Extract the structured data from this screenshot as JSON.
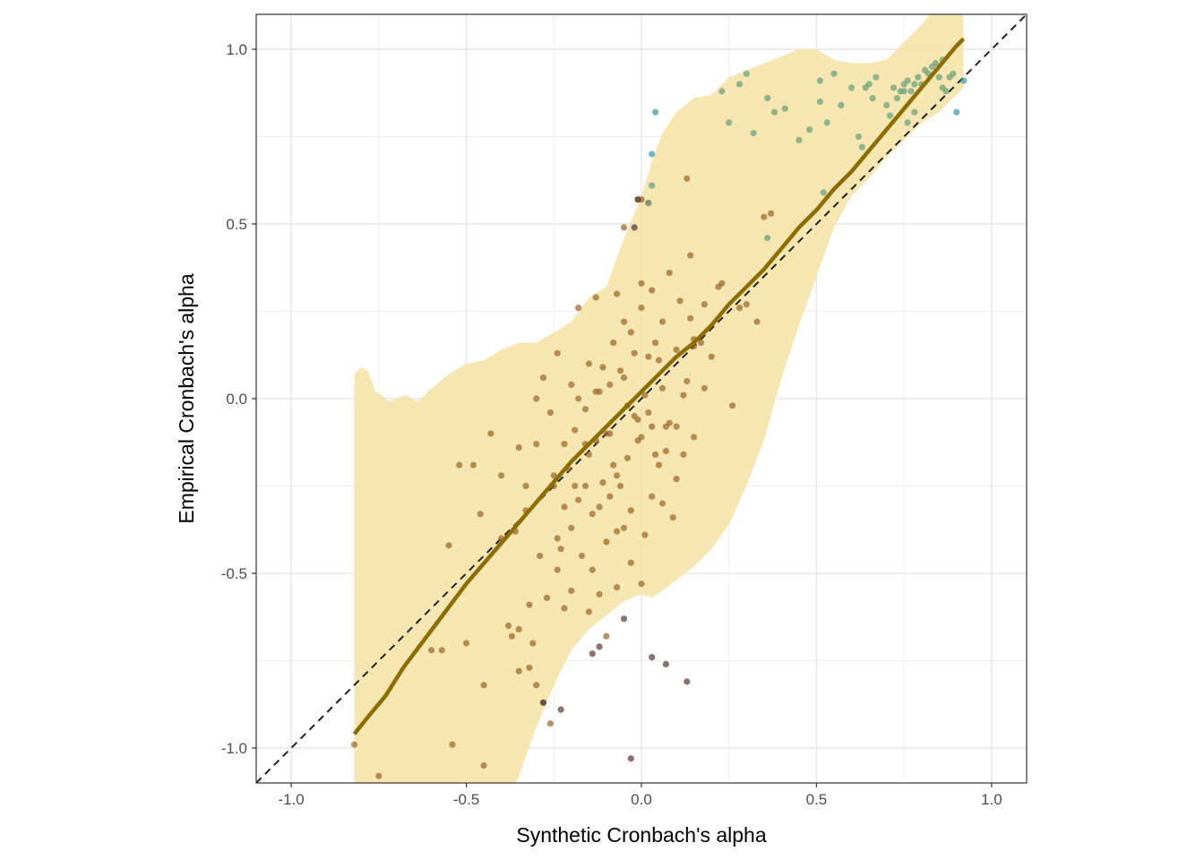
{
  "chart_data": {
    "type": "scatter",
    "xlabel": "Synthetic Cronbach's alpha",
    "ylabel": "Empirical Cronbach's alpha",
    "xlim": [
      -1.1,
      1.1
    ],
    "ylim": [
      -1.1,
      1.1
    ],
    "x_ticks": [
      "-1.0",
      "-0.5",
      "0.0",
      "0.5",
      "1.0"
    ],
    "y_ticks": [
      "-1.0",
      "-0.5",
      "0.0",
      "0.5",
      "1.0"
    ],
    "grid": true,
    "reference_line": {
      "type": "identity",
      "style": "dashed",
      "color": "#222222"
    },
    "colors": {
      "ribbon": "#f5e3a8",
      "fit_line": "#8c6d00",
      "points_within": "#9a6a2e",
      "points_above": "#3a9aa4",
      "points_below": "#5a3a3a",
      "grid": "#e6e6e6",
      "panel_border": "#333333"
    },
    "ribbon": {
      "x": [
        -0.82,
        -0.8,
        -0.78,
        -0.76,
        -0.74,
        -0.72,
        -0.7,
        -0.67,
        -0.64,
        -0.6,
        -0.55,
        -0.5,
        -0.45,
        -0.4,
        -0.35,
        -0.3,
        -0.25,
        -0.2,
        -0.15,
        -0.1,
        -0.05,
        0.0,
        0.03,
        0.06,
        0.1,
        0.15,
        0.2,
        0.25,
        0.3,
        0.35,
        0.4,
        0.45,
        0.5,
        0.55,
        0.6,
        0.65,
        0.7,
        0.75,
        0.8,
        0.85,
        0.88,
        0.9,
        0.92
      ],
      "upper": [
        0.07,
        0.09,
        0.08,
        0.02,
        0.01,
        -0.01,
        0.0,
        0.01,
        -0.01,
        0.03,
        0.07,
        0.1,
        0.11,
        0.14,
        0.16,
        0.16,
        0.19,
        0.22,
        0.29,
        0.32,
        0.46,
        0.58,
        0.68,
        0.76,
        0.82,
        0.86,
        0.87,
        0.92,
        0.94,
        0.96,
        0.98,
        1.0,
        1.0,
        0.97,
        0.96,
        0.96,
        0.97,
        1.02,
        1.07,
        1.13,
        1.15,
        1.2,
        1.22
      ],
      "lower": [
        -1.2,
        -1.2,
        -1.2,
        -1.2,
        -1.2,
        -1.2,
        -1.2,
        -1.2,
        -1.2,
        -1.2,
        -1.2,
        -1.2,
        -1.2,
        -1.2,
        -1.08,
        -0.94,
        -0.82,
        -0.72,
        -0.66,
        -0.62,
        -0.58,
        -0.56,
        -0.57,
        -0.55,
        -0.52,
        -0.48,
        -0.43,
        -0.36,
        -0.25,
        -0.12,
        0.06,
        0.21,
        0.35,
        0.49,
        0.58,
        0.63,
        0.69,
        0.74,
        0.79,
        0.82,
        0.85,
        0.87,
        0.89
      ]
    },
    "fit_line": {
      "x": [
        -0.82,
        -0.78,
        -0.73,
        -0.68,
        -0.62,
        -0.56,
        -0.5,
        -0.44,
        -0.38,
        -0.32,
        -0.26,
        -0.2,
        -0.14,
        -0.08,
        -0.03,
        0.0,
        0.05,
        0.1,
        0.15,
        0.2,
        0.25,
        0.3,
        0.35,
        0.4,
        0.45,
        0.5,
        0.55,
        0.6,
        0.65,
        0.7,
        0.75,
        0.8,
        0.85,
        0.9,
        0.92
      ],
      "y": [
        -0.96,
        -0.91,
        -0.85,
        -0.77,
        -0.69,
        -0.61,
        -0.53,
        -0.46,
        -0.39,
        -0.32,
        -0.25,
        -0.18,
        -0.12,
        -0.06,
        -0.01,
        0.02,
        0.07,
        0.12,
        0.16,
        0.21,
        0.27,
        0.32,
        0.37,
        0.43,
        0.49,
        0.54,
        0.6,
        0.65,
        0.71,
        0.77,
        0.83,
        0.89,
        0.95,
        1.01,
        1.03
      ]
    },
    "series": [
      {
        "name": "",
        "color": "#9a6a2e",
        "points": [
          [
            -0.02,
            -0.05
          ],
          [
            0.01,
            0.01
          ],
          [
            0.03,
            -0.08
          ],
          [
            -0.05,
            0.06
          ],
          [
            0.06,
            0.03
          ],
          [
            -0.1,
            -0.1
          ],
          [
            -0.12,
            0.02
          ],
          [
            -0.15,
            -0.16
          ],
          [
            0.05,
            -0.19
          ],
          [
            -0.07,
            -0.22
          ],
          [
            0.08,
            -0.07
          ],
          [
            0.1,
            0.14
          ],
          [
            -0.2,
            0.04
          ],
          [
            -0.22,
            -0.13
          ],
          [
            -0.25,
            -0.25
          ],
          [
            0.14,
            0.23
          ],
          [
            0.15,
            0.17
          ],
          [
            0.17,
            0.16
          ],
          [
            -0.18,
            -0.29
          ],
          [
            -0.05,
            0.22
          ],
          [
            0.0,
            0.26
          ],
          [
            0.03,
            0.31
          ],
          [
            0.06,
            0.22
          ],
          [
            -0.08,
            0.16
          ],
          [
            -0.11,
            0.09
          ],
          [
            -0.13,
            0.02
          ],
          [
            -0.16,
            -0.03
          ],
          [
            -0.3,
            -0.13
          ],
          [
            -0.33,
            -0.25
          ],
          [
            -0.36,
            -0.38
          ],
          [
            -0.38,
            -0.65
          ],
          [
            -0.35,
            -0.66
          ],
          [
            -0.4,
            -0.4
          ],
          [
            -0.45,
            -0.82
          ],
          [
            -0.5,
            -0.7
          ],
          [
            -0.55,
            -0.42
          ],
          [
            -0.57,
            -0.72
          ],
          [
            -0.48,
            -0.19
          ],
          [
            -0.52,
            -0.19
          ],
          [
            -0.46,
            -0.33
          ],
          [
            -0.27,
            -0.57
          ],
          [
            -0.24,
            -0.49
          ],
          [
            -0.2,
            -0.37
          ],
          [
            -0.17,
            -0.45
          ],
          [
            -0.15,
            -0.61
          ],
          [
            -0.12,
            -0.56
          ],
          [
            -0.1,
            -0.68
          ],
          [
            -0.07,
            -0.54
          ],
          [
            -0.05,
            -0.37
          ],
          [
            -0.03,
            -0.47
          ],
          [
            0.0,
            -0.53
          ],
          [
            0.03,
            -0.28
          ],
          [
            0.06,
            -0.3
          ],
          [
            0.09,
            -0.34
          ],
          [
            0.12,
            -0.16
          ],
          [
            0.15,
            -0.11
          ],
          [
            0.2,
            0.12
          ],
          [
            0.26,
            -0.02
          ],
          [
            0.22,
            0.32
          ],
          [
            0.28,
            0.26
          ],
          [
            0.3,
            0.27
          ],
          [
            0.33,
            0.22
          ],
          [
            0.35,
            0.52
          ],
          [
            0.37,
            0.53
          ],
          [
            0.13,
            0.63
          ],
          [
            0.14,
            0.41
          ],
          [
            -0.05,
            0.49
          ],
          [
            -0.01,
            0.57
          ],
          [
            0.0,
            0.57
          ],
          [
            0.02,
            0.56
          ],
          [
            -0.26,
            -0.93
          ],
          [
            -0.3,
            -0.82
          ],
          [
            -0.32,
            -0.77
          ],
          [
            -0.35,
            -0.78
          ],
          [
            -0.37,
            -0.68
          ],
          [
            -0.28,
            -0.87
          ],
          [
            -0.31,
            -0.7
          ],
          [
            -0.22,
            -0.6
          ],
          [
            -0.23,
            -0.43
          ],
          [
            -0.19,
            -0.25
          ],
          [
            -0.14,
            -0.33
          ],
          [
            -0.09,
            -0.28
          ],
          [
            -0.06,
            -0.25
          ],
          [
            -0.03,
            -0.32
          ],
          [
            0.01,
            -0.39
          ],
          [
            0.04,
            -0.16
          ],
          [
            0.07,
            -0.08
          ],
          [
            0.1,
            -0.08
          ],
          [
            0.12,
            0.01
          ],
          [
            -0.01,
            -0.12
          ],
          [
            -0.04,
            -0.17
          ],
          [
            -0.08,
            -0.19
          ],
          [
            -0.11,
            -0.24
          ],
          [
            -0.13,
            -0.12
          ],
          [
            -0.02,
            0.13
          ],
          [
            0.02,
            0.12
          ],
          [
            0.05,
            0.11
          ],
          [
            -0.06,
            0.08
          ],
          [
            -0.09,
            0.04
          ],
          [
            0.08,
            0.36
          ],
          [
            0.11,
            0.28
          ],
          [
            -0.13,
            0.29
          ],
          [
            -0.18,
            0.26
          ],
          [
            -0.24,
            0.13
          ],
          [
            -0.3,
            0.0
          ],
          [
            -0.28,
            0.06
          ],
          [
            -0.35,
            -0.14
          ],
          [
            -0.4,
            -0.22
          ],
          [
            -0.43,
            -0.1
          ],
          [
            -0.6,
            -0.72
          ],
          [
            -0.54,
            -0.99
          ],
          [
            -0.45,
            -1.05
          ],
          [
            -0.75,
            -1.08
          ],
          [
            -0.82,
            -0.99
          ],
          [
            -0.1,
            -0.41
          ],
          [
            -0.14,
            -0.49
          ],
          [
            -0.07,
            -0.38
          ],
          [
            0.0,
            -0.11
          ],
          [
            -0.04,
            -0.02
          ],
          [
            -0.18,
            0.0
          ],
          [
            -0.21,
            -0.2
          ],
          [
            -0.16,
            -0.25
          ],
          [
            -0.25,
            -0.22
          ],
          [
            -0.33,
            -0.32
          ],
          [
            0.07,
            -0.15
          ],
          [
            0.18,
            0.03
          ],
          [
            0.23,
            0.33
          ],
          [
            -0.15,
            0.1
          ],
          [
            0.0,
            0.33
          ],
          [
            -0.07,
            0.3
          ],
          [
            -0.03,
            0.19
          ],
          [
            0.04,
            0.16
          ],
          [
            -0.01,
            -0.06
          ],
          [
            0.02,
            -0.04
          ],
          [
            -0.12,
            -0.31
          ],
          [
            -0.16,
            -0.13
          ],
          [
            -0.19,
            -0.09
          ],
          [
            -0.22,
            -0.31
          ],
          [
            -0.09,
            -0.1
          ],
          [
            0.1,
            -0.23
          ],
          [
            0.13,
            0.05
          ],
          [
            0.15,
            0.15
          ],
          [
            0.18,
            0.27
          ],
          [
            -0.26,
            -0.04
          ],
          [
            -0.24,
            -0.4
          ],
          [
            -0.29,
            -0.45
          ],
          [
            -0.32,
            -0.59
          ],
          [
            -0.2,
            -0.55
          ]
        ]
      },
      {
        "name": "",
        "color": "#6aa07c",
        "points": [
          [
            0.23,
            0.88
          ],
          [
            0.25,
            0.79
          ],
          [
            0.28,
            0.9
          ],
          [
            0.3,
            0.93
          ],
          [
            0.32,
            0.76
          ],
          [
            0.36,
            0.86
          ],
          [
            0.38,
            0.82
          ],
          [
            0.41,
            0.83
          ],
          [
            0.45,
            0.74
          ],
          [
            0.48,
            0.77
          ],
          [
            0.51,
            0.85
          ],
          [
            0.51,
            0.91
          ],
          [
            0.53,
            0.79
          ],
          [
            0.57,
            0.84
          ],
          [
            0.6,
            0.89
          ],
          [
            0.62,
            0.75
          ],
          [
            0.63,
            0.72
          ],
          [
            0.64,
            0.89
          ],
          [
            0.65,
            0.9
          ],
          [
            0.66,
            0.86
          ],
          [
            0.7,
            0.84
          ],
          [
            0.71,
            0.81
          ],
          [
            0.72,
            0.89
          ],
          [
            0.73,
            0.86
          ],
          [
            0.75,
            0.88
          ],
          [
            0.75,
            0.9
          ],
          [
            0.76,
            0.91
          ],
          [
            0.76,
            0.79
          ],
          [
            0.77,
            0.88
          ],
          [
            0.78,
            0.82
          ],
          [
            0.79,
            0.92
          ],
          [
            0.8,
            0.9
          ],
          [
            0.82,
            0.93
          ],
          [
            0.83,
            0.95
          ],
          [
            0.84,
            0.96
          ],
          [
            0.85,
            0.92
          ],
          [
            0.86,
            0.89
          ],
          [
            0.87,
            0.88
          ],
          [
            0.88,
            0.92
          ],
          [
            0.89,
            0.93
          ],
          [
            0.03,
            0.61
          ],
          [
            0.02,
            0.56
          ],
          [
            0.36,
            0.46
          ],
          [
            0.52,
            0.59
          ],
          [
            0.55,
            0.93
          ],
          [
            0.67,
            0.92
          ],
          [
            0.74,
            0.88
          ],
          [
            0.81,
            0.94
          ],
          [
            0.86,
            0.97
          ],
          [
            0.78,
            0.9
          ]
        ]
      },
      {
        "name": "",
        "color": "#3a9aa4",
        "points": [
          [
            0.04,
            0.82
          ],
          [
            0.03,
            0.7
          ],
          [
            0.9,
            0.82
          ],
          [
            0.92,
            0.91
          ]
        ]
      },
      {
        "name": "",
        "color": "#5a3a3a",
        "points": [
          [
            -0.05,
            -0.63
          ],
          [
            -0.12,
            -0.71
          ],
          [
            -0.14,
            -0.73
          ],
          [
            0.03,
            -0.74
          ],
          [
            0.07,
            -0.76
          ],
          [
            0.13,
            -0.81
          ],
          [
            -0.28,
            -0.87
          ],
          [
            -0.23,
            -0.89
          ],
          [
            -0.03,
            -1.03
          ],
          [
            -0.02,
            0.49
          ],
          [
            -0.01,
            0.57
          ]
        ]
      }
    ]
  }
}
